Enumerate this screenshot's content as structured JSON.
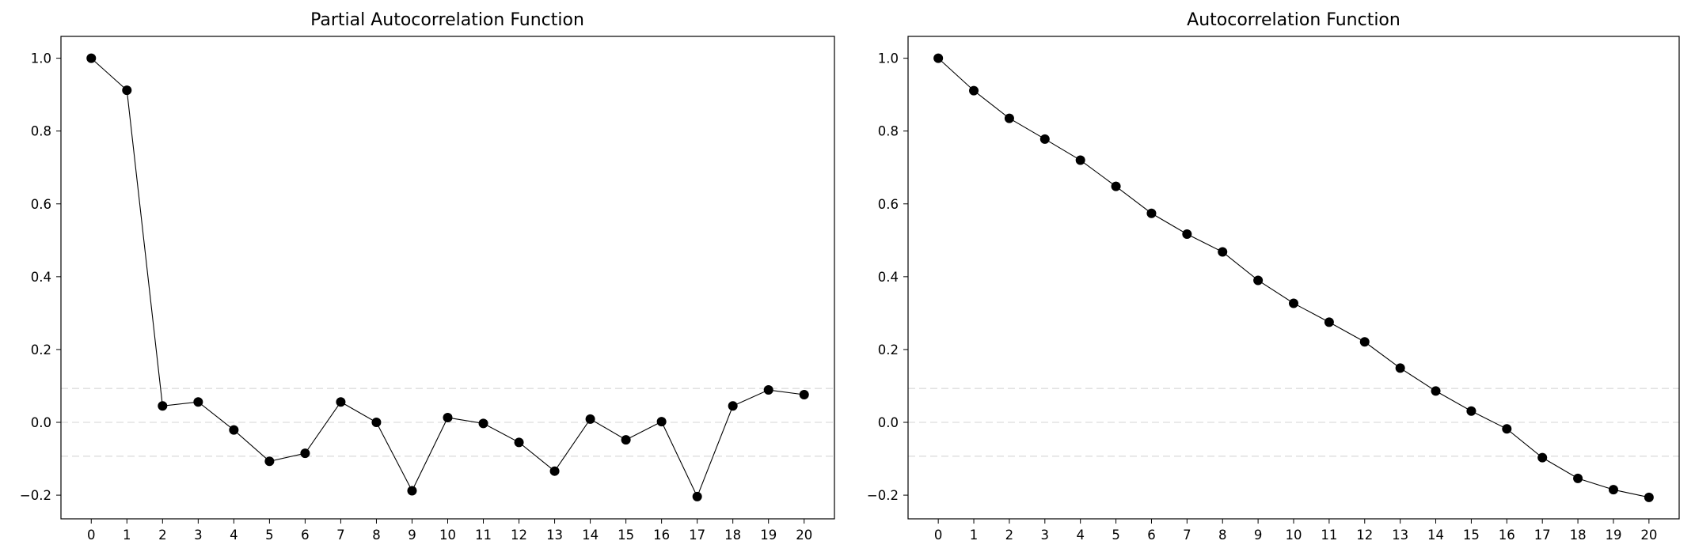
{
  "chart_data": [
    {
      "type": "line",
      "title": "Partial Autocorrelation Function",
      "xlabel": "",
      "ylabel": "",
      "x": [
        0,
        1,
        2,
        3,
        4,
        5,
        6,
        7,
        8,
        9,
        10,
        11,
        12,
        13,
        14,
        15,
        16,
        17,
        18,
        19,
        20
      ],
      "series": [
        {
          "values": [
            1.0,
            0.912,
            0.045,
            0.056,
            -0.021,
            -0.107,
            -0.085,
            0.056,
            0.0,
            -0.188,
            0.013,
            -0.003,
            -0.055,
            -0.134,
            0.009,
            -0.048,
            0.002,
            -0.204,
            0.045,
            0.089,
            0.076
          ]
        }
      ],
      "confidence_band": 0.093,
      "zero_line": 0.0,
      "xlim": [
        -0.85,
        20.85
      ],
      "ylim": [
        -0.265,
        1.06
      ],
      "yticks": [
        -0.2,
        0.0,
        0.2,
        0.4,
        0.6,
        0.8,
        1.0
      ],
      "ytick_labels": [
        "−0.2",
        "0.0",
        "0.2",
        "0.4",
        "0.6",
        "0.8",
        "1.0"
      ],
      "xtick_labels": [
        "0",
        "1",
        "2",
        "3",
        "4",
        "5",
        "6",
        "7",
        "8",
        "9",
        "10",
        "11",
        "12",
        "13",
        "14",
        "15",
        "16",
        "17",
        "18",
        "19",
        "20"
      ],
      "grid": false,
      "line_color": "#000000",
      "marker_color": "#000000",
      "band_color": "#dddddd"
    },
    {
      "type": "line",
      "title": "Autocorrelation Function",
      "xlabel": "",
      "ylabel": "",
      "x": [
        0,
        1,
        2,
        3,
        4,
        5,
        6,
        7,
        8,
        9,
        10,
        11,
        12,
        13,
        14,
        15,
        16,
        17,
        18,
        19,
        20
      ],
      "series": [
        {
          "values": [
            1.0,
            0.911,
            0.835,
            0.778,
            0.72,
            0.648,
            0.574,
            0.517,
            0.468,
            0.39,
            0.327,
            0.275,
            0.221,
            0.149,
            0.086,
            0.031,
            -0.018,
            -0.097,
            -0.154,
            -0.185,
            -0.206
          ]
        }
      ],
      "confidence_band": 0.093,
      "zero_line": 0.0,
      "xlim": [
        -0.85,
        20.85
      ],
      "ylim": [
        -0.265,
        1.06
      ],
      "yticks": [
        -0.2,
        0.0,
        0.2,
        0.4,
        0.6,
        0.8,
        1.0
      ],
      "ytick_labels": [
        "−0.2",
        "0.0",
        "0.2",
        "0.4",
        "0.6",
        "0.8",
        "1.0"
      ],
      "xtick_labels": [
        "0",
        "1",
        "2",
        "3",
        "4",
        "5",
        "6",
        "7",
        "8",
        "9",
        "10",
        "11",
        "12",
        "13",
        "14",
        "15",
        "16",
        "17",
        "18",
        "19",
        "20"
      ],
      "grid": false,
      "line_color": "#000000",
      "marker_color": "#000000",
      "band_color": "#dddddd"
    }
  ]
}
